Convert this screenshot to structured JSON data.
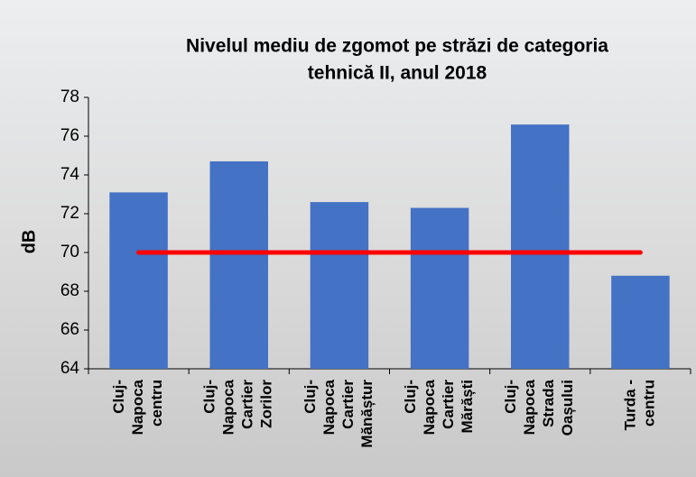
{
  "chart_data": {
    "type": "bar",
    "title": [
      "Nivelul mediu de zgomot pe străzi de categoria",
      "tehnică II, anul 2018"
    ],
    "y_label": "dB",
    "categories": [
      [
        "Cluj-",
        "Napoca",
        "centru"
      ],
      [
        "Cluj-",
        "Napoca",
        "Cartier",
        "Zorilor"
      ],
      [
        "Cluj-",
        "Napoca",
        "Cartier",
        "Mănăștur"
      ],
      [
        "Cluj-",
        "Napoca",
        "Cartier",
        "Mărăști"
      ],
      [
        "Cluj-",
        "Napoca",
        "Strada",
        "Oașului"
      ],
      [
        "Turda -",
        "centru"
      ]
    ],
    "series": [
      {
        "type": "bar",
        "color": "#4472c4",
        "values": [
          73.1,
          74.7,
          72.6,
          72.3,
          76.6,
          68.8
        ]
      },
      {
        "type": "line",
        "color": "#ff0000",
        "values": [
          70,
          70,
          70,
          70,
          70,
          70
        ]
      }
    ],
    "ylim": [
      64,
      78
    ],
    "yticks": [
      64,
      66,
      68,
      70,
      72,
      74,
      76,
      78
    ]
  }
}
